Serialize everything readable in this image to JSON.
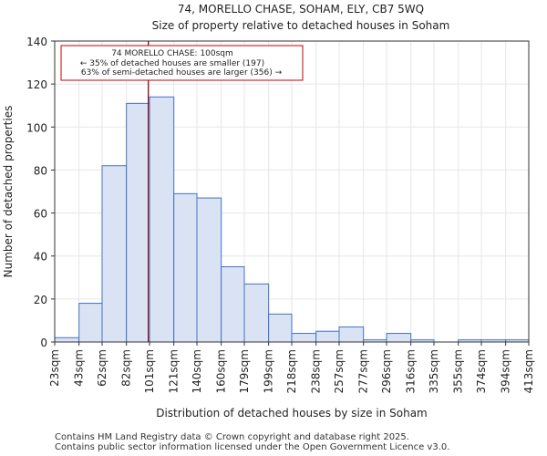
{
  "chart_data": {
    "type": "bar",
    "title": "74, MORELLO CHASE, SOHAM, ELY, CB7 5WQ",
    "subtitle": "Size of property relative to detached houses in Soham",
    "xlabel": "Distribution of detached houses by size in Soham",
    "ylabel": "Number of detached properties",
    "ylim": [
      0,
      140
    ],
    "yticks": [
      0,
      20,
      40,
      60,
      80,
      100,
      120,
      140
    ],
    "bin_edges": [
      23,
      43,
      62,
      82,
      101,
      121,
      140,
      160,
      179,
      199,
      218,
      238,
      257,
      277,
      296,
      316,
      335,
      355,
      374,
      394,
      413
    ],
    "tick_labels": [
      "23sqm",
      "43sqm",
      "62sqm",
      "82sqm",
      "101sqm",
      "121sqm",
      "140sqm",
      "160sqm",
      "179sqm",
      "199sqm",
      "218sqm",
      "238sqm",
      "257sqm",
      "277sqm",
      "296sqm",
      "316sqm",
      "335sqm",
      "355sqm",
      "374sqm",
      "394sqm",
      "413sqm"
    ],
    "values": [
      2,
      18,
      82,
      111,
      114,
      69,
      67,
      35,
      27,
      13,
      4,
      5,
      7,
      1,
      4,
      1,
      0,
      1,
      1,
      1
    ],
    "marker_value": 100,
    "annotation": {
      "line1": "74 MORELLO CHASE: 100sqm",
      "line2": "← 35% of detached houses are smaller (197)",
      "line3": "63% of semi-detached houses are larger (356) →"
    },
    "colors": {
      "bar_fill": "#dae3f3",
      "bar_edge": "#4472c4",
      "marker": "#8b0000",
      "grid": "#e6e6e6"
    },
    "grid": true
  },
  "footer": {
    "line1": "Contains HM Land Registry data © Crown copyright and database right 2025.",
    "line2": "Contains public sector information licensed under the Open Government Licence v3.0."
  }
}
